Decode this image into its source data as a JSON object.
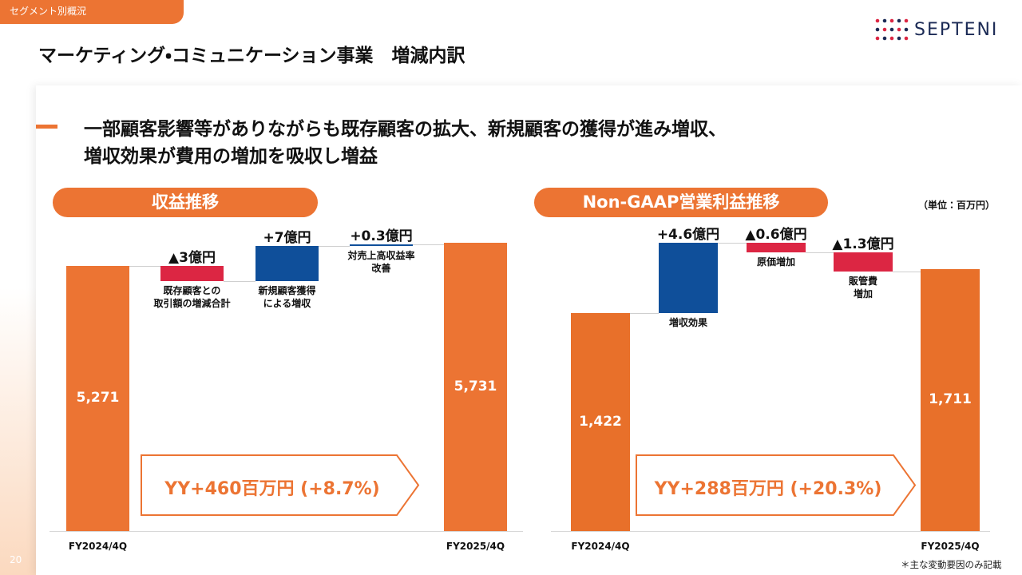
{
  "header": {
    "section": "セグメント別概況",
    "title": "マーケティング・コミュニケーション事業　増減内訳",
    "logo": "SEPTENI",
    "page": "20"
  },
  "headline": [
    "一部顧客影響等がありながらも既存顧客の拡大、新規顧客の獲得が進み増収、",
    "増収効果が費用の増加を吸収し増益"
  ],
  "unit_note": "（単位：百万円）",
  "footnote": "＊主な変動要因のみ記載",
  "chart_data": [
    {
      "type": "waterfall",
      "title": "収益推移",
      "categories": [
        "FY2024/4Q",
        "既存顧客との\n取引額の増減合計",
        "新規顧客獲得\nによる増収",
        "対売上高収益率\n改善",
        "FY2025/4Q"
      ],
      "values": [
        5271,
        -300,
        700,
        30,
        5731
      ],
      "value_labels": [
        "5,271",
        "▲3億円",
        "+7億円",
        "+0.3億円",
        "5,731"
      ],
      "colors": {
        "total": "#ec7433",
        "increase": "#0f4f9a",
        "decrease": "#dc2643"
      },
      "summary": "YY+460百万円 (+8.7%)"
    },
    {
      "type": "waterfall",
      "title": "Non-GAAP営業利益推移",
      "categories": [
        "FY2024/4Q",
        "増収効果",
        "原価増加",
        "販管費\n増加",
        "FY2025/4Q"
      ],
      "values": [
        1422,
        460,
        -60,
        -130,
        1711
      ],
      "value_labels": [
        "1,422",
        "+4.6億円",
        "▲0.6億円",
        "▲1.3億円",
        "1,711"
      ],
      "colors": {
        "total": "#e8702a",
        "increase": "#0f4f9a",
        "decrease": "#dc2643"
      },
      "summary": "YY+288百万円 (+20.3%)"
    }
  ]
}
